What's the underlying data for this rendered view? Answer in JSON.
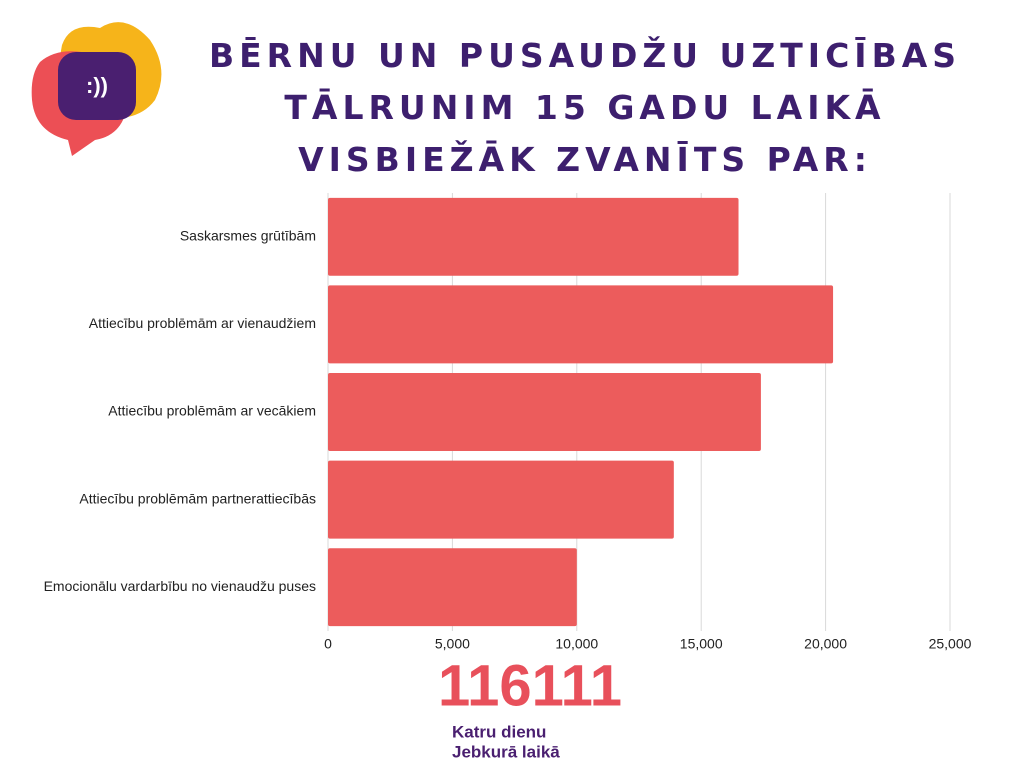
{
  "logo_text": ":))",
  "chart_data": {
    "type": "hbar",
    "title": "BĒRNU UN PUSAUDŽU UZTICĪBAS TĀLRUNIM 15 GADU LAIKĀ VISBIEŽĀK ZVANĪTS PAR:",
    "categories": [
      "Saskarsmes grūtībām",
      "Attiecību problēmām ar vienaudžiem",
      "Attiecību problēmām ar vecākiem",
      "Attiecību problēmām partnerattiecībās",
      "Emocionālu vardarbību no vienaudžu puses"
    ],
    "values": [
      16500,
      20300,
      17400,
      13900,
      10000
    ],
    "color": "#ec5c5c",
    "xlim": [
      0,
      25000
    ],
    "xticks": [
      0,
      {
        "value": 5000,
        "label": "5,000"
      },
      {
        "value": 10000,
        "label": "10,000"
      },
      {
        "value": 15000,
        "label": "15,000"
      },
      {
        "value": 20000,
        "label": "20,000"
      },
      {
        "value": 25000,
        "label": "25,000"
      }
    ],
    "grid": true
  },
  "footer": {
    "number": "116111",
    "line1": "Katru dienu",
    "line2": "Jebkurā laikā"
  }
}
